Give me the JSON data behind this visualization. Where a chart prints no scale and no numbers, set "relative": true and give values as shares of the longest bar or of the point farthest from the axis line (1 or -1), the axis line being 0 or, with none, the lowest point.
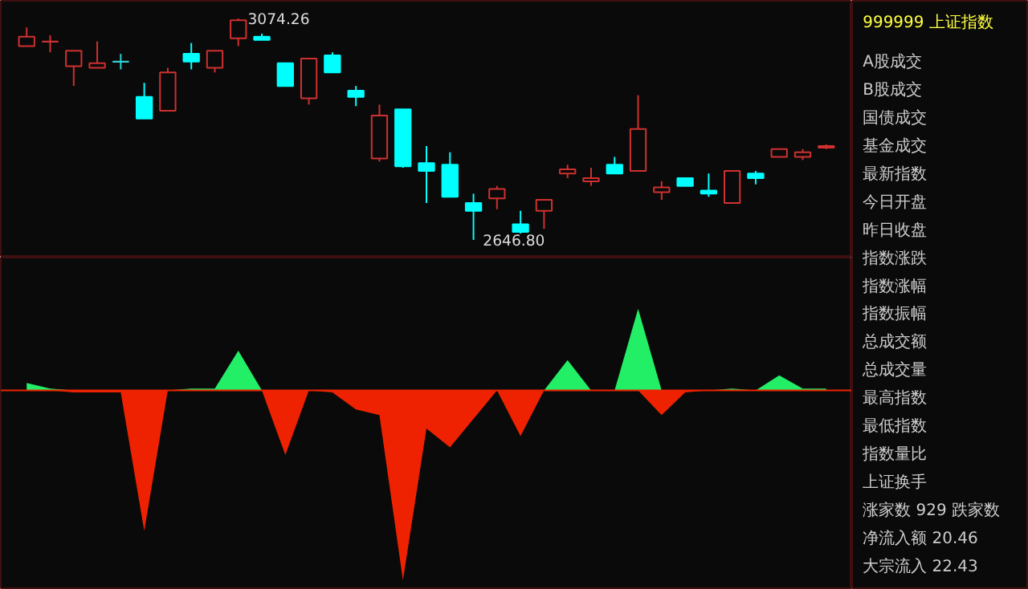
{
  "chart_data": [
    {
      "type": "candlestick",
      "categories": [
        null,
        null,
        null,
        null,
        null,
        null,
        null,
        null,
        null,
        null,
        null,
        null,
        null,
        null,
        null,
        null,
        null,
        null,
        null,
        null,
        null,
        null,
        null,
        null,
        null,
        null,
        null,
        null,
        null,
        null,
        null,
        null,
        null,
        null,
        null
      ],
      "ohlc": [
        [
          3021,
          3057,
          3021,
          3039
        ],
        [
          3030,
          3042,
          3009,
          3030
        ],
        [
          2982,
          3012,
          2944,
          3012
        ],
        [
          2979,
          3030,
          2979,
          2988
        ],
        [
          2991,
          3006,
          2976,
          2991
        ],
        [
          2923,
          2950,
          2881,
          2881
        ],
        [
          2896,
          2979,
          2896,
          2970
        ],
        [
          3006,
          3027,
          2976,
          2991
        ],
        [
          2979,
          3012,
          2970,
          3012
        ],
        [
          3036,
          3074.26,
          3021,
          3071
        ],
        [
          3039,
          3045,
          3033,
          3033
        ],
        [
          2988,
          2988,
          2944,
          2944
        ],
        [
          2920,
          2997,
          2908,
          2997
        ],
        [
          3003,
          3009,
          2970,
          2970
        ],
        [
          2935,
          2944,
          2905,
          2923
        ],
        [
          2804,
          2908,
          2798,
          2887
        ],
        [
          2899,
          2899,
          2786,
          2789
        ],
        [
          2795,
          2828,
          2718,
          2780
        ],
        [
          2792,
          2816,
          2730,
          2730
        ],
        [
          2718,
          2736,
          2646.8,
          2703
        ],
        [
          2727,
          2751,
          2706,
          2745
        ],
        [
          2677,
          2703,
          2659,
          2662
        ],
        [
          2703,
          2724,
          2668,
          2724
        ],
        [
          2775,
          2792,
          2766,
          2783
        ],
        [
          2760,
          2786,
          2751,
          2766
        ],
        [
          2792,
          2807,
          2775,
          2775
        ],
        [
          2780,
          2926,
          2780,
          2861
        ],
        [
          2739,
          2760,
          2724,
          2748
        ],
        [
          2766,
          2766,
          2751,
          2751
        ],
        [
          2742,
          2775,
          2730,
          2736
        ],
        [
          2718,
          2780,
          2718,
          2780
        ],
        [
          2775,
          2780,
          2754,
          2766
        ],
        [
          2807,
          2822,
          2807,
          2822
        ],
        [
          2807,
          2822,
          2801,
          2816
        ],
        [
          2825,
          2831,
          2822,
          2828
        ]
      ],
      "colors": [
        "#d03030",
        "#d03030",
        "#d03030",
        "#d03030",
        "#30d0d0",
        "#00ffff",
        "#d03030",
        "#00ffff",
        "#d03030",
        "#d03030",
        "#00ffff",
        "#00ffff",
        "#d03030",
        "#00ffff",
        "#00ffff",
        "#d03030",
        "#00ffff",
        "#00ffff",
        "#00ffff",
        "#00ffff",
        "#d03030",
        "#00ffff",
        "#d03030",
        "#d03030",
        "#d03030",
        "#00ffff",
        "#d03030",
        "#d03030",
        "#00ffff",
        "#00ffff",
        "#d03030",
        "#00ffff",
        "#d03030",
        "#d03030",
        "#d03030"
      ],
      "annotations": [
        "3074.26",
        "2646.80"
      ]
    },
    {
      "type": "area",
      "relative": true,
      "ref_lines": [
        {
          "axis": "y",
          "value": 0,
          "color": "#ee2200"
        }
      ],
      "categories": [
        null,
        null,
        null,
        null,
        null,
        null,
        null,
        null,
        null,
        null,
        null,
        null,
        null,
        null,
        null,
        null,
        null,
        null,
        null,
        null,
        null,
        null,
        null,
        null,
        null,
        null,
        null,
        null,
        null,
        null,
        null,
        null,
        null,
        null,
        null
      ],
      "series": [
        {
          "color": "#22ee66",
          "values": [
            0.04,
            0.01,
            0,
            0,
            0,
            0,
            0,
            0.01,
            0.01,
            0.21,
            0,
            0,
            0,
            0,
            0,
            0,
            0,
            0,
            0,
            0,
            0,
            0,
            0,
            0.16,
            0,
            0,
            0.43,
            0,
            0,
            0,
            0.01,
            0,
            0.08,
            0.01,
            0.01
          ]
        },
        {
          "color": "#ee2200",
          "values": [
            0,
            0,
            -0.01,
            -0.01,
            -0.01,
            -0.74,
            0,
            0,
            0,
            0,
            0,
            -0.34,
            0,
            -0.01,
            -0.1,
            -0.13,
            -1,
            -0.2,
            -0.3,
            -0.15,
            0,
            -0.24,
            0,
            0,
            0,
            0,
            0,
            -0.13,
            -0.01,
            0,
            0,
            0,
            0,
            0,
            0
          ]
        }
      ]
    },
    {
      "type": "other",
      "title": "999999 上证指数",
      "annotations": [
        "A股成交",
        "B股成交",
        "国债成交",
        "基金成交",
        "最新指数",
        "今日开盘",
        "昨日收盘",
        "指数涨跌",
        "指数涨幅",
        "指数振幅",
        "总成交额",
        "总成交量",
        "最高指数",
        "最低指数",
        "指数量比",
        "上证换手",
        "涨家数 929 跌家数",
        "净流入额 20.46",
        "大宗流入 22.43"
      ]
    }
  ]
}
